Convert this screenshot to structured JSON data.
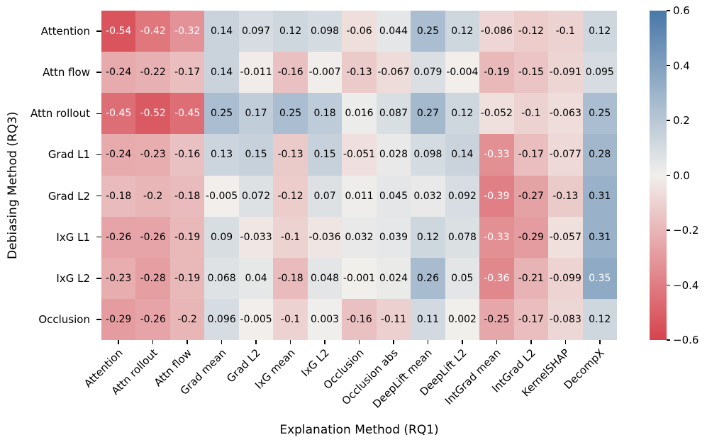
{
  "chart_data": {
    "type": "heatmap",
    "title": "",
    "xlabel": "Explanation Method (RQ1)",
    "ylabel": "Debiasing Method (RQ3)",
    "x_categories": [
      "Attention",
      "Attn rollout",
      "Attn flow",
      "Grad mean",
      "Grad L2",
      "IxG mean",
      "IxG L2",
      "Occlusion",
      "Occlusion abs",
      "DeepLift mean",
      "DeepLift L2",
      "IntGrad mean",
      "IntGrad L2",
      "KernelSHAP",
      "DecompX"
    ],
    "y_categories": [
      "Attention",
      "Attn flow",
      "Attn rollout",
      "Grad L1",
      "Grad L2",
      "IxG L1",
      "IxG L2",
      "Occlusion"
    ],
    "values": [
      [
        -0.54,
        -0.42,
        -0.32,
        0.14,
        0.097,
        0.12,
        0.098,
        -0.06,
        0.044,
        0.25,
        0.12,
        -0.086,
        -0.12,
        -0.1,
        0.12
      ],
      [
        -0.24,
        -0.22,
        -0.17,
        0.14,
        -0.011,
        -0.16,
        -0.007,
        -0.13,
        -0.067,
        0.079,
        -0.004,
        -0.19,
        -0.15,
        -0.091,
        0.095
      ],
      [
        -0.45,
        -0.52,
        -0.45,
        0.25,
        0.17,
        0.25,
        0.18,
        0.016,
        0.087,
        0.27,
        0.12,
        -0.052,
        -0.1,
        -0.063,
        0.25
      ],
      [
        -0.24,
        -0.23,
        -0.16,
        0.13,
        0.15,
        -0.13,
        0.15,
        -0.051,
        0.028,
        0.098,
        0.14,
        -0.33,
        -0.17,
        -0.077,
        0.28
      ],
      [
        -0.18,
        -0.2,
        -0.18,
        -0.005,
        0.072,
        -0.12,
        0.07,
        0.011,
        0.045,
        0.032,
        0.092,
        -0.39,
        -0.27,
        -0.13,
        0.31
      ],
      [
        -0.26,
        -0.26,
        -0.19,
        0.09,
        -0.033,
        -0.1,
        -0.036,
        0.032,
        0.039,
        0.12,
        0.078,
        -0.33,
        -0.29,
        -0.057,
        0.31
      ],
      [
        -0.23,
        -0.28,
        -0.19,
        0.068,
        0.04,
        -0.18,
        0.048,
        -0.001,
        0.024,
        0.26,
        0.05,
        -0.36,
        -0.21,
        -0.099,
        0.35
      ],
      [
        -0.29,
        -0.26,
        -0.2,
        0.096,
        -0.005,
        -0.1,
        0.003,
        -0.16,
        -0.11,
        0.11,
        0.002,
        -0.25,
        -0.17,
        -0.083,
        0.12
      ]
    ],
    "vmin": -0.6,
    "vmax": 0.6,
    "colorbar_ticks": [
      "0.6",
      "0.4",
      "0.2",
      "0.0",
      "−0.2",
      "−0.4",
      "−0.6"
    ],
    "colormap": {
      "negative_end": "#d7434e",
      "zero": "#f1efec",
      "positive_end": "#4878a8"
    },
    "annotation_white_text_threshold": 0.32,
    "annotation_black_color": "#000000",
    "annotation_white_color": "#ffffff",
    "legend_position": "right",
    "grid": false
  }
}
